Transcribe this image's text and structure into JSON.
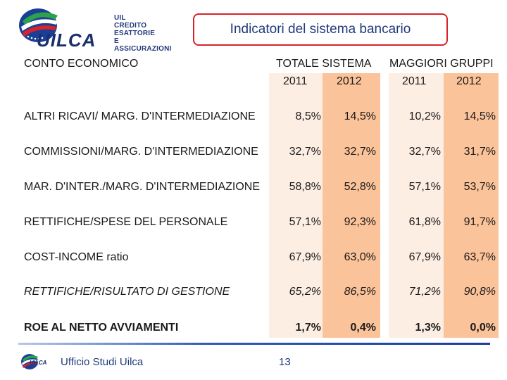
{
  "header": {
    "logo_lines": [
      "UIL",
      "CREDITO",
      "ESATTORIE",
      "E ASSICURAZIONI"
    ],
    "logo_word": "UILCA",
    "title": "Indicatori del sistema bancario"
  },
  "table": {
    "section_label": "CONTO ECONOMICO",
    "groups": [
      {
        "label": "TOTALE SISTEMA",
        "years": [
          "2011",
          "2012"
        ]
      },
      {
        "label": "MAGGIORI GRUPPI",
        "years": [
          "2011",
          "2012"
        ]
      }
    ],
    "rows": [
      {
        "label": "ALTRI RICAVI/ MARG. D'INTERMEDIAZIONE",
        "values": [
          "8,5%",
          "14,5%",
          "10,2%",
          "14,5%"
        ]
      },
      {
        "label": "COMMISSIONI/MARG. D'INTERMEDIAZIONE",
        "values": [
          "32,7%",
          "32,7%",
          "32,7%",
          "31,7%"
        ]
      },
      {
        "label": "MAR. D'INTER./MARG. D'INTERMEDIAZIONE",
        "values": [
          "58,8%",
          "52,8%",
          "57,1%",
          "53,7%"
        ]
      },
      {
        "label": "RETTIFICHE/SPESE DEL PERSONALE",
        "values": [
          "57,1%",
          "92,3%",
          "61,8%",
          "91,7%"
        ]
      },
      {
        "label": "COST-INCOME ratio",
        "values": [
          "67,9%",
          "63,0%",
          "67,9%",
          "63,7%"
        ]
      },
      {
        "label": "RETTIFICHE/RISULTATO DI GESTIONE",
        "values": [
          "65,2%",
          "86,5%",
          "71,2%",
          "90,8%"
        ]
      },
      {
        "label": "ROE AL NETTO AVVIAMENTI",
        "values": [
          "1,7%",
          "0,4%",
          "1,3%",
          "0,0%"
        ]
      }
    ]
  },
  "footer": {
    "logo_word": "UILCA",
    "org": "Ufficio Studi Uilca",
    "page": "13"
  }
}
